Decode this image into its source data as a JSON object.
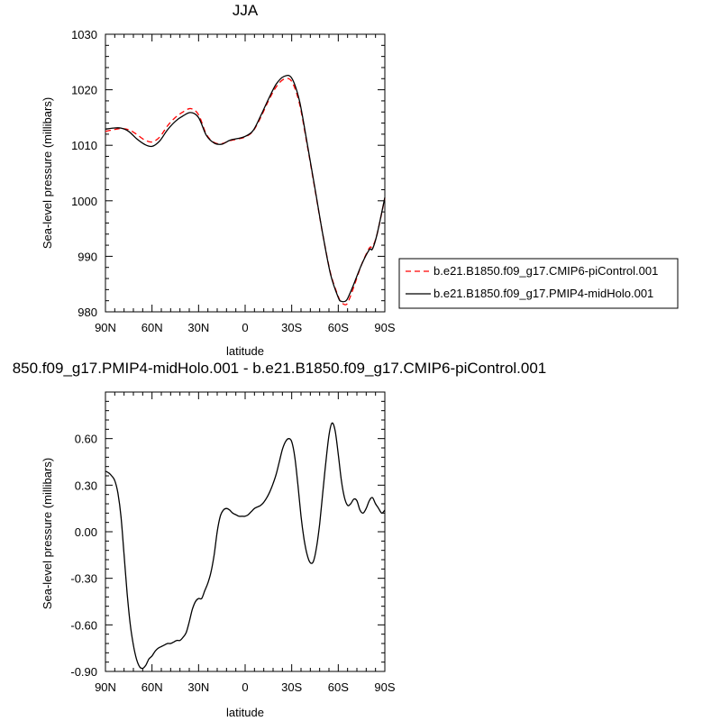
{
  "chart_data": [
    {
      "type": "line",
      "title": "JJA",
      "xlabel": "latitude",
      "ylabel": "Sea-level pressure (millibars)",
      "xlim": [
        90,
        -90
      ],
      "ylim": [
        980,
        1030
      ],
      "xticks": [
        90,
        60,
        30,
        0,
        -30,
        -60,
        -90
      ],
      "xtick_labels": [
        "90N",
        "60N",
        "30N",
        "0",
        "30S",
        "60S",
        "90S"
      ],
      "yticks": [
        980,
        990,
        1000,
        1010,
        1020,
        1030
      ],
      "ytick_labels": [
        "980",
        "990",
        "1000",
        "1010",
        "1020",
        "1030"
      ],
      "legend_position": "right",
      "grid": false,
      "series": [
        {
          "name": "b.e21.B1850.f09_g17.CMIP6-piControl.001",
          "color": "#ff0000",
          "dash": "dashed",
          "x": [
            90,
            85,
            80,
            75,
            70,
            65,
            60,
            55,
            50,
            45,
            40,
            35,
            30,
            25,
            20,
            15,
            10,
            5,
            0,
            -5,
            -10,
            -15,
            -20,
            -25,
            -30,
            -35,
            -40,
            -45,
            -50,
            -55,
            -60,
            -62,
            -65,
            -67,
            -70,
            -75,
            -80,
            -82,
            -85,
            -90
          ],
          "y": [
            1012.5,
            1012.8,
            1013.0,
            1012.8,
            1012.0,
            1011.0,
            1010.6,
            1011.5,
            1013.5,
            1015.0,
            1016.0,
            1016.6,
            1015.5,
            1012.0,
            1010.5,
            1010.3,
            1010.8,
            1011.1,
            1011.5,
            1012.5,
            1015.0,
            1018.0,
            1020.5,
            1021.9,
            1021.5,
            1017.5,
            1010.0,
            1002.0,
            994.0,
            987.0,
            982.8,
            981.7,
            981.3,
            982.2,
            984.5,
            988.5,
            991.5,
            991.7,
            994.0,
            1000.5
          ]
        },
        {
          "name": "b.e21.B1850.f09_g17.PMIP4-midHolo.001",
          "color": "#000000",
          "dash": "solid",
          "x": [
            90,
            85,
            80,
            75,
            70,
            65,
            60,
            55,
            50,
            45,
            40,
            35,
            30,
            25,
            20,
            15,
            10,
            5,
            0,
            -5,
            -10,
            -15,
            -20,
            -25,
            -30,
            -35,
            -40,
            -45,
            -50,
            -55,
            -60,
            -62,
            -65,
            -67,
            -70,
            -75,
            -80,
            -82,
            -85,
            -90
          ],
          "y": [
            1012.9,
            1013.1,
            1013.1,
            1012.5,
            1011.2,
            1010.2,
            1009.8,
            1010.8,
            1012.8,
            1014.3,
            1015.3,
            1015.9,
            1015.0,
            1011.8,
            1010.4,
            1010.2,
            1010.9,
            1011.2,
            1011.6,
            1012.6,
            1015.3,
            1018.3,
            1021.0,
            1022.4,
            1022.1,
            1018.0,
            1010.3,
            1002.2,
            994.0,
            986.8,
            982.6,
            981.9,
            982.0,
            983.0,
            985.0,
            988.5,
            991.2,
            991.3,
            994.0,
            1000.6
          ]
        }
      ]
    },
    {
      "type": "line",
      "title": "850.f09_g17.PMIP4-midHolo.001 - b.e21.B1850.f09_g17.CMIP6-piControl.001",
      "xlabel": "latitude",
      "ylabel": "Sea-level pressure (millibars)",
      "xlim": [
        90,
        -90
      ],
      "ylim": [
        -0.9,
        0.9
      ],
      "xticks": [
        90,
        60,
        30,
        0,
        -30,
        -60,
        -90
      ],
      "xtick_labels": [
        "90N",
        "60N",
        "30N",
        "0",
        "30S",
        "60S",
        "90S"
      ],
      "yticks": [
        -0.9,
        -0.6,
        -0.3,
        0.0,
        0.3,
        0.6
      ],
      "ytick_labels": [
        "-0.90",
        "-0.60",
        "-0.30",
        "0.00",
        "0.30",
        "0.60"
      ],
      "grid": false,
      "series": [
        {
          "color": "#000000",
          "dash": "solid",
          "x": [
            90,
            88,
            86,
            84,
            82,
            80,
            78,
            76,
            74,
            72,
            70,
            68,
            66,
            64,
            62,
            60,
            58,
            56,
            54,
            52,
            50,
            48,
            46,
            44,
            42,
            40,
            38,
            36,
            34,
            32,
            30,
            28,
            26,
            24,
            22,
            20,
            18,
            16,
            14,
            12,
            10,
            8,
            6,
            4,
            2,
            0,
            -2,
            -4,
            -6,
            -8,
            -10,
            -12,
            -14,
            -16,
            -18,
            -20,
            -22,
            -24,
            -26,
            -28,
            -30,
            -32,
            -34,
            -36,
            -38,
            -40,
            -42,
            -44,
            -46,
            -48,
            -50,
            -52,
            -54,
            -56,
            -58,
            -60,
            -62,
            -64,
            -66,
            -68,
            -70,
            -72,
            -74,
            -76,
            -78,
            -80,
            -82,
            -84,
            -86,
            -88,
            -90
          ],
          "y": [
            0.39,
            0.38,
            0.36,
            0.33,
            0.25,
            0.1,
            -0.15,
            -0.4,
            -0.6,
            -0.73,
            -0.82,
            -0.87,
            -0.88,
            -0.86,
            -0.82,
            -0.8,
            -0.77,
            -0.75,
            -0.74,
            -0.73,
            -0.72,
            -0.72,
            -0.71,
            -0.7,
            -0.7,
            -0.68,
            -0.65,
            -0.58,
            -0.5,
            -0.45,
            -0.43,
            -0.43,
            -0.38,
            -0.33,
            -0.26,
            -0.15,
            0.0,
            0.1,
            0.14,
            0.15,
            0.14,
            0.12,
            0.11,
            0.1,
            0.1,
            0.1,
            0.11,
            0.13,
            0.15,
            0.16,
            0.17,
            0.19,
            0.22,
            0.26,
            0.31,
            0.37,
            0.45,
            0.53,
            0.58,
            0.6,
            0.58,
            0.48,
            0.3,
            0.1,
            -0.05,
            -0.15,
            -0.2,
            -0.19,
            -0.1,
            0.05,
            0.25,
            0.45,
            0.62,
            0.7,
            0.65,
            0.5,
            0.33,
            0.22,
            0.17,
            0.18,
            0.21,
            0.2,
            0.14,
            0.12,
            0.15,
            0.2,
            0.22,
            0.18,
            0.15,
            0.12,
            0.14
          ]
        }
      ]
    }
  ]
}
